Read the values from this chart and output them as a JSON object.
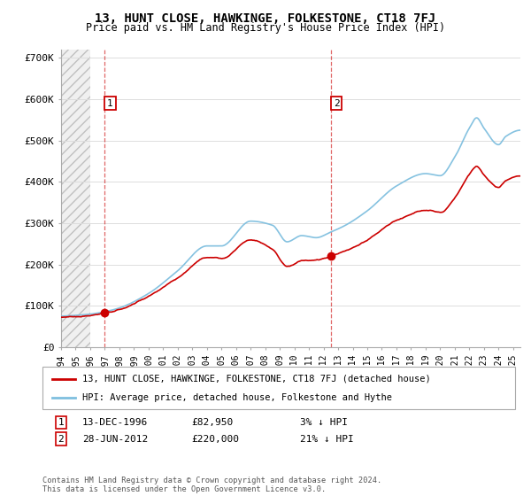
{
  "title": "13, HUNT CLOSE, HAWKINGE, FOLKESTONE, CT18 7FJ",
  "subtitle": "Price paid vs. HM Land Registry's House Price Index (HPI)",
  "ylabel_ticks": [
    "£0",
    "£100K",
    "£200K",
    "£300K",
    "£400K",
    "£500K",
    "£600K",
    "£700K"
  ],
  "ytick_values": [
    0,
    100000,
    200000,
    300000,
    400000,
    500000,
    600000,
    700000
  ],
  "ylim": [
    0,
    720000
  ],
  "xlim": [
    1994,
    2025.5
  ],
  "sale1_date": 1996.96,
  "sale1_price": 82950,
  "sale2_date": 2012.49,
  "sale2_price": 220000,
  "hpi_color": "#7fbfdf",
  "sale_color": "#cc0000",
  "legend_label_red": "13, HUNT CLOSE, HAWKINGE, FOLKESTONE, CT18 7FJ (detached house)",
  "legend_label_blue": "HPI: Average price, detached house, Folkestone and Hythe",
  "annotation1_label": "1",
  "annotation1_date": "13-DEC-1996",
  "annotation1_price": "£82,950",
  "annotation1_hpi": "3% ↓ HPI",
  "annotation2_label": "2",
  "annotation2_date": "28-JUN-2012",
  "annotation2_price": "£220,000",
  "annotation2_hpi": "21% ↓ HPI",
  "footer": "Contains HM Land Registry data © Crown copyright and database right 2024.\nThis data is licensed under the Open Government Licence v3.0."
}
